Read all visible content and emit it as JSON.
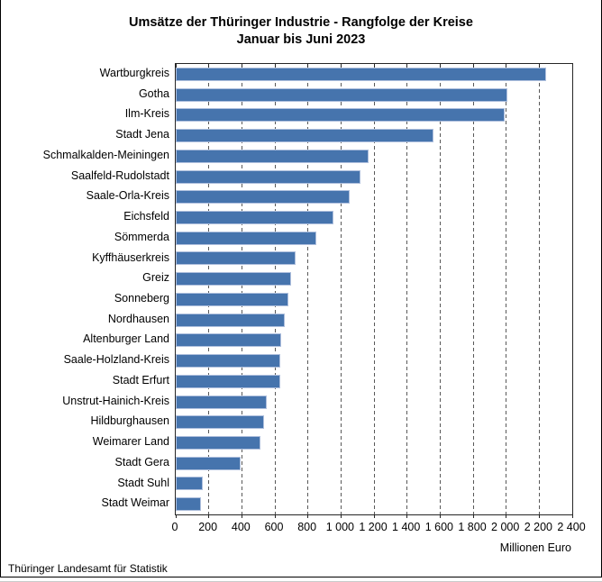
{
  "title": {
    "line1": "Umsätze der Thüringer Industrie - Rangfolge der Kreise",
    "line2": "Januar bis Juni 2023"
  },
  "source": "Thüringer Landesamt für Statistik",
  "chart_data": {
    "type": "bar",
    "orientation": "horizontal",
    "title": "Umsätze der Thüringer Industrie - Rangfolge der Kreise Januar bis Juni 2023",
    "xlabel": "Millionen Euro",
    "xlim": [
      0,
      2400
    ],
    "xtick_interval": 200,
    "xtick_labels": [
      "0",
      "200",
      "400",
      "600",
      "800",
      "1 000",
      "1 200",
      "1 400",
      "1 600",
      "1 800",
      "2 000",
      "2 200",
      "2 400"
    ],
    "grid": "vertical-dashed",
    "legend": "none",
    "categories": [
      "Wartburgkreis",
      "Gotha",
      "Ilm-Kreis",
      "Stadt Jena",
      "Schmalkalden-Meiningen",
      "Saalfeld-Rudolstadt",
      "Saale-Orla-Kreis",
      "Eichsfeld",
      "Sömmerda",
      "Kyffhäuserkreis",
      "Greiz",
      "Sonneberg",
      "Nordhausen",
      "Altenburger Land",
      "Saale-Holzland-Kreis",
      "Stadt Erfurt",
      "Unstrut-Hainich-Kreis",
      "Hildburghausen",
      "Weimarer Land",
      "Stadt Gera",
      "Stadt Suhl",
      "Stadt Weimar"
    ],
    "values": [
      2240,
      2005,
      1990,
      1560,
      1165,
      1120,
      1050,
      955,
      850,
      725,
      700,
      680,
      660,
      640,
      635,
      630,
      550,
      535,
      515,
      395,
      165,
      150
    ],
    "bar_color": "#4674ad",
    "bar_border_color": "#aebfdd",
    "gridline_color": "#595959",
    "axis_color": "#262626"
  }
}
